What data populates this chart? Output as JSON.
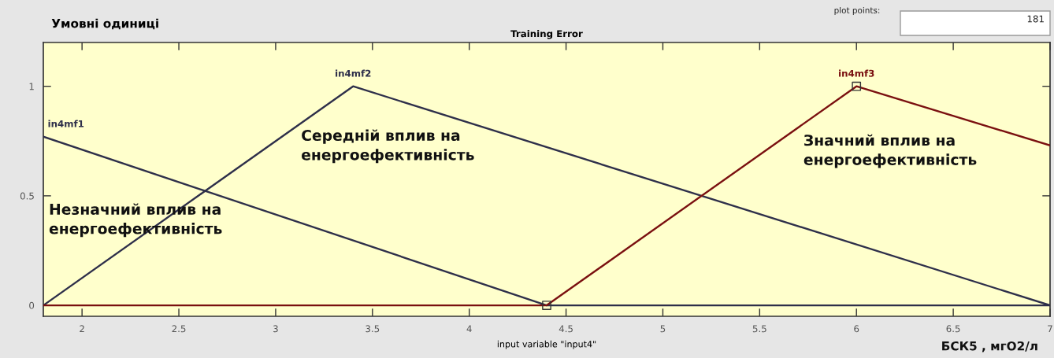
{
  "chart_data": {
    "type": "line",
    "title": "Training Error",
    "xlabel": "input variable \"input4\"",
    "ylabel": "Умовні одиниці",
    "series": [
      {
        "name": "in4mf1",
        "color": "#2e2f4a",
        "x": [
          1.8,
          4.4,
          7
        ],
        "values": [
          0.77,
          0,
          0
        ]
      },
      {
        "name": "in4mf2",
        "color": "#2e2f4a",
        "x": [
          1.8,
          3.4,
          7
        ],
        "values": [
          0,
          1,
          0
        ]
      },
      {
        "name": "in4mf3",
        "color": "#7a1010",
        "x": [
          1.8,
          4.4,
          6,
          7
        ],
        "values": [
          0,
          0,
          1,
          0.73
        ]
      },
      {
        "type": "scatter",
        "marker": "square",
        "color": "#333333",
        "x": [
          4.4,
          6
        ],
        "values": [
          0,
          1
        ]
      }
    ],
    "xlim": [
      1.8,
      7
    ],
    "ylim": [
      -0.05,
      1.2
    ],
    "xticks": [
      2,
      2.5,
      3,
      3.5,
      4,
      4.5,
      5,
      5.5,
      6,
      6.5,
      7
    ],
    "yticks": [
      0,
      0.5,
      1
    ],
    "grid": false,
    "annotations": [
      "Незначний вплив на\nенергоефективність",
      "Середній вплив на\nенергоефективність",
      "Значний вплив на\nенергоефективність",
      "БСК5 , мгО2/л",
      "plot points:",
      "181"
    ]
  }
}
